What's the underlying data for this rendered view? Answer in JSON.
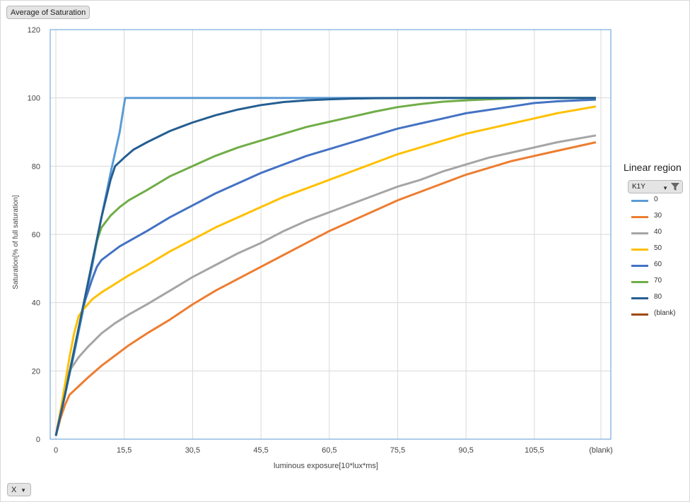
{
  "value_field": {
    "label": "Average of Saturation"
  },
  "axis_field": {
    "label": "X"
  },
  "legend": {
    "title": "Linear region",
    "filter_label": "K1Y",
    "items": [
      {
        "label": "0",
        "color": "#5b9bd5"
      },
      {
        "label": "30",
        "color": "#ed7d31"
      },
      {
        "label": "40",
        "color": "#a5a5a5"
      },
      {
        "label": "50",
        "color": "#ffc000"
      },
      {
        "label": "60",
        "color": "#4472c4"
      },
      {
        "label": "70",
        "color": "#70ad47"
      },
      {
        "label": "80",
        "color": "#255e91"
      },
      {
        "label": "(blank)",
        "color": "#9e480e"
      }
    ]
  },
  "chart_data": {
    "type": "line",
    "title": "",
    "xlabel": "luminous exposure[10*lux*ms]",
    "ylabel": "Saturation[% of full saturation]",
    "x_ticks": [
      "0",
      "15,5",
      "30,5",
      "45,5",
      "60,5",
      "75,5",
      "90,5",
      "105,5",
      "(blank)"
    ],
    "y_ticks": [
      "0",
      "20",
      "40",
      "60",
      "80",
      "100",
      "120"
    ],
    "xlim": [
      0,
      120
    ],
    "ylim": [
      0,
      120
    ],
    "grid": true,
    "legend_position": "right",
    "series": [
      {
        "name": "0",
        "color": "#5b9bd5",
        "x": [
          0,
          2,
          4,
          6,
          8,
          10,
          12,
          14,
          15.2,
          20,
          40,
          60,
          80,
          100,
          118.5
        ],
        "y": [
          1,
          13,
          25,
          38,
          51,
          65,
          78,
          90,
          100,
          100,
          100,
          100,
          100,
          100,
          100
        ]
      },
      {
        "name": "30",
        "color": "#ed7d31",
        "x": [
          0,
          1,
          2,
          3,
          5,
          7,
          10,
          13,
          16,
          20,
          25,
          30,
          35,
          40,
          45,
          50,
          55,
          60,
          65,
          70,
          75,
          80,
          85,
          90,
          95,
          100,
          105,
          110,
          118.5
        ],
        "y": [
          1,
          6,
          10,
          13,
          15.5,
          18,
          21.5,
          24.5,
          27.5,
          31,
          35,
          39.5,
          43.5,
          47,
          50.5,
          54,
          57.5,
          61,
          64,
          67,
          70,
          72.5,
          75,
          77.5,
          79.5,
          81.5,
          83,
          84.5,
          87
        ]
      },
      {
        "name": "40",
        "color": "#a5a5a5",
        "x": [
          0,
          1,
          2,
          3,
          5,
          7,
          10,
          13,
          16,
          20,
          25,
          30,
          35,
          40,
          45,
          50,
          55,
          60,
          65,
          70,
          75,
          80,
          85,
          90,
          95,
          100,
          105,
          110,
          118.5
        ],
        "y": [
          1,
          8,
          14,
          20,
          24,
          27,
          31,
          34,
          36.5,
          39.5,
          43.5,
          47.5,
          51,
          54.5,
          57.5,
          61,
          64,
          66.5,
          69,
          71.5,
          74,
          76,
          78.5,
          80.5,
          82.5,
          84,
          85.5,
          87,
          89
        ]
      },
      {
        "name": "50",
        "color": "#ffc000",
        "x": [
          0,
          1,
          2,
          3,
          4,
          5,
          6,
          7,
          8,
          10,
          13,
          16,
          20,
          25,
          30,
          35,
          40,
          45,
          50,
          55,
          60,
          65,
          70,
          75,
          80,
          85,
          90,
          95,
          100,
          105,
          110,
          118.5
        ],
        "y": [
          1,
          8,
          16,
          24,
          31,
          36,
          38,
          39.5,
          41,
          43,
          45.5,
          48,
          51,
          55,
          58.5,
          62,
          65,
          68,
          71,
          73.5,
          76,
          78.5,
          81,
          83.5,
          85.5,
          87.5,
          89.5,
          91,
          92.5,
          94,
          95.5,
          97.5
        ]
      },
      {
        "name": "60",
        "color": "#4472c4",
        "x": [
          0,
          2,
          4,
          6,
          8,
          9,
          10,
          12,
          14,
          16,
          20,
          25,
          30,
          35,
          40,
          45,
          50,
          55,
          60,
          65,
          70,
          75,
          80,
          85,
          90,
          95,
          100,
          105,
          110,
          118.5
        ],
        "y": [
          1,
          13,
          26,
          39,
          47,
          50.5,
          52.5,
          54.5,
          56.5,
          58,
          61,
          65,
          68.5,
          72,
          75,
          78,
          80.5,
          83,
          85,
          87,
          89,
          91,
          92.5,
          94,
          95.5,
          96.5,
          97.5,
          98.5,
          99,
          99.5
        ]
      },
      {
        "name": "70",
        "color": "#70ad47",
        "x": [
          0,
          2,
          4,
          6,
          8,
          9,
          10,
          12,
          14,
          16,
          20,
          25,
          30,
          35,
          40,
          45,
          50,
          55,
          60,
          65,
          70,
          75,
          80,
          85,
          90,
          95,
          100,
          105,
          110,
          118.5
        ],
        "y": [
          1,
          13,
          26,
          39,
          52,
          58,
          62,
          65.5,
          68,
          70,
          73,
          77,
          80,
          83,
          85.5,
          87.5,
          89.5,
          91.5,
          93,
          94.5,
          96,
          97.3,
          98.2,
          98.9,
          99.3,
          99.6,
          99.8,
          100,
          100,
          100
        ]
      },
      {
        "name": "80",
        "color": "#255e91",
        "x": [
          0,
          2,
          4,
          6,
          8,
          10,
          12,
          13,
          15,
          17,
          20,
          25,
          30,
          35,
          40,
          45,
          50,
          55,
          60,
          65,
          70,
          80,
          90,
          100,
          118.5
        ],
        "y": [
          1,
          13,
          26,
          39,
          52,
          65,
          76,
          80,
          82.5,
          84.8,
          87,
          90.3,
          92.8,
          94.9,
          96.6,
          97.9,
          98.8,
          99.3,
          99.6,
          99.8,
          99.9,
          100,
          100,
          100,
          100
        ]
      }
    ]
  }
}
